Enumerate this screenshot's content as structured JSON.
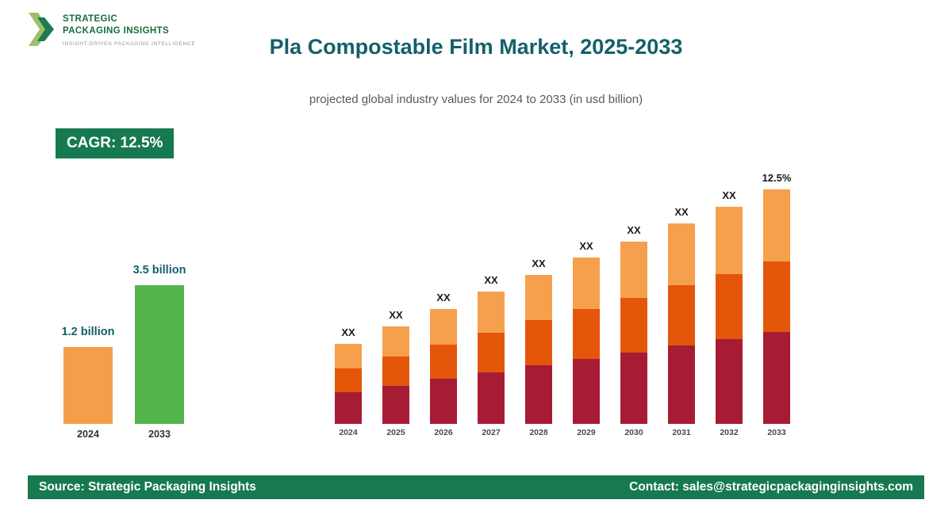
{
  "brand": {
    "name_line1": "STRATEGIC",
    "name_line2": "PACKAGING INSIGHTS",
    "tagline": "INSIGHT-DRIVEN PACKAGING INTELLIGENCE"
  },
  "header": {
    "title": "Pla Compostable Film Market, 2025-2033",
    "subtitle": "projected global industry values for 2024 to 2033 (in usd billion)"
  },
  "cagr_badge": "CAGR: 12.5%",
  "colors": {
    "brand_green": "#17794F",
    "title_teal": "#14606A",
    "segment_bottom": "#A61C35",
    "segment_middle": "#E4560A",
    "segment_top": "#F6A04E",
    "mini_orange": "#F59E4A",
    "mini_green": "#54B44C"
  },
  "chart_data": [
    {
      "type": "bar",
      "stacked": true,
      "title": "Pla Compostable Film Market, 2025-2033",
      "subtitle": "projected global industry values for 2024 to 2033 (in usd billion)",
      "unit": "usd billion",
      "categories": [
        "2024",
        "2025",
        "2026",
        "2027",
        "2028",
        "2029",
        "2030",
        "2031",
        "2032",
        "2033"
      ],
      "bar_labels": [
        "XX",
        "XX",
        "XX",
        "XX",
        "XX",
        "XX",
        "XX",
        "XX",
        "XX",
        "12.5%"
      ],
      "totals": [
        1.2,
        1.46,
        1.71,
        1.97,
        2.22,
        2.48,
        2.73,
        2.99,
        3.24,
        3.5
      ],
      "series": [
        {
          "name": "tier-bottom",
          "color": "#A61C35",
          "values": [
            0.47,
            0.57,
            0.67,
            0.77,
            0.87,
            0.97,
            1.07,
            1.17,
            1.27,
            1.37
          ]
        },
        {
          "name": "tier-middle",
          "color": "#E4560A",
          "values": [
            0.36,
            0.44,
            0.51,
            0.59,
            0.67,
            0.74,
            0.82,
            0.9,
            0.97,
            1.05
          ]
        },
        {
          "name": "tier-top",
          "color": "#F6A04E",
          "values": [
            0.37,
            0.45,
            0.53,
            0.61,
            0.68,
            0.77,
            0.84,
            0.92,
            1.0,
            1.08
          ]
        }
      ],
      "ylim": [
        0,
        3.8
      ],
      "grid": false,
      "legend": "none"
    },
    {
      "type": "bar",
      "title": "2024 vs 2033 market size",
      "categories": [
        "2024",
        "2033"
      ],
      "values": [
        1.2,
        3.5
      ],
      "labels": [
        "1.2 billion",
        "3.5 billion"
      ],
      "colors": [
        "#F59E4A",
        "#54B44C"
      ]
    }
  ],
  "footer": {
    "source": "Source: Strategic Packaging Insights",
    "contact": "Contact: sales@strategicpackaginginsights.com"
  }
}
